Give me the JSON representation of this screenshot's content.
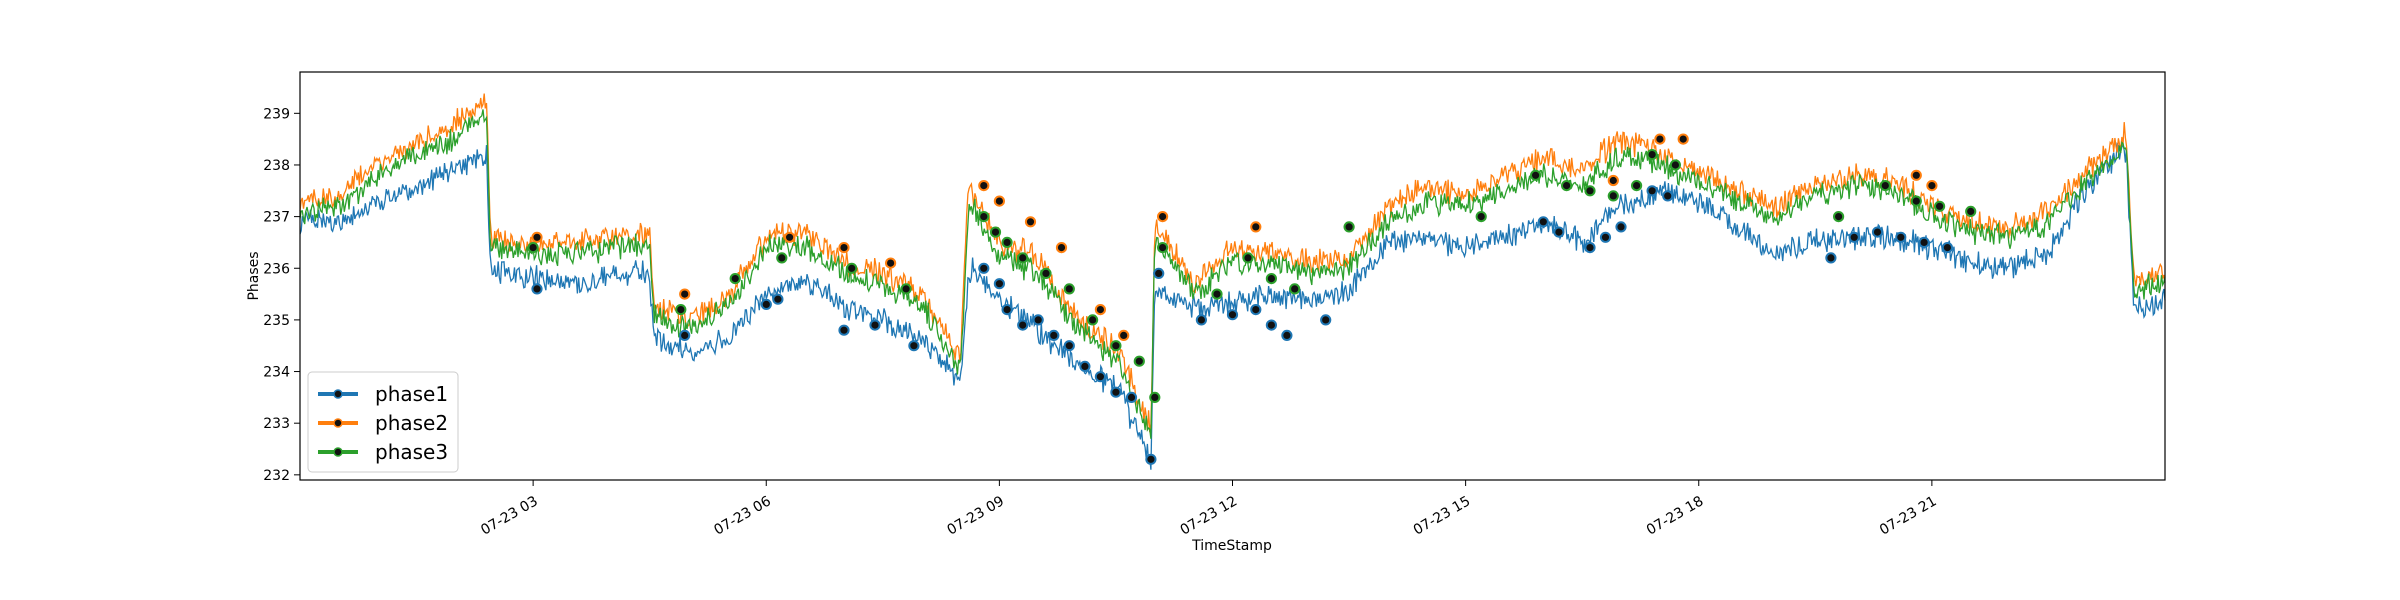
{
  "chart_data": {
    "type": "line",
    "title": "",
    "xlabel": "TimeStamp",
    "ylabel": "Phases",
    "x_range": [
      "07-23 00:00",
      "07-23 23:59"
    ],
    "ylim": [
      231.9,
      239.8
    ],
    "y_ticks": [
      232,
      233,
      234,
      235,
      236,
      237,
      238,
      239
    ],
    "x_ticks": [
      {
        "label": "07-23 03",
        "hour": 3
      },
      {
        "label": "07-23 06",
        "hour": 6
      },
      {
        "label": "07-23 09",
        "hour": 9
      },
      {
        "label": "07-23 12",
        "hour": 12
      },
      {
        "label": "07-23 15",
        "hour": 15
      },
      {
        "label": "07-23 18",
        "hour": 18
      },
      {
        "label": "07-23 21",
        "hour": 21
      }
    ],
    "legend": {
      "placement": "bottom-left"
    },
    "grid": false,
    "x_hours": [
      0,
      0.5,
      1,
      1.5,
      2,
      2.4,
      2.45,
      3,
      3.5,
      4,
      4.5,
      4.55,
      5,
      5.5,
      6,
      6.5,
      7,
      7.5,
      8,
      8.5,
      8.6,
      8.65,
      9,
      9.5,
      10,
      10.5,
      10.95,
      11,
      11.5,
      12,
      12.5,
      13,
      13.5,
      14,
      14.5,
      15,
      15.5,
      16,
      16.5,
      17,
      17.5,
      18,
      18.5,
      19,
      19.5,
      20,
      20.5,
      21,
      21.5,
      22,
      22.5,
      23,
      23.5,
      23.6,
      24
    ],
    "series": [
      {
        "name": "phase1",
        "color": "#1f77b4",
        "values": [
          236.9,
          236.9,
          237.3,
          237.6,
          237.9,
          238.2,
          236.0,
          235.8,
          235.7,
          235.9,
          235.9,
          234.6,
          234.4,
          234.6,
          235.5,
          235.8,
          235.2,
          235.0,
          234.6,
          233.8,
          235.8,
          236.0,
          235.4,
          234.8,
          234.1,
          233.7,
          232.3,
          235.6,
          235.2,
          235.3,
          235.5,
          235.4,
          235.6,
          236.5,
          236.6,
          236.4,
          236.6,
          236.9,
          236.5,
          237.2,
          237.5,
          237.3,
          236.8,
          236.3,
          236.5,
          236.6,
          236.6,
          236.4,
          236.1,
          236.0,
          236.3,
          237.6,
          238.3,
          235.2,
          235.4
        ]
      },
      {
        "name": "phase2",
        "color": "#ff7f0e",
        "values": [
          237.3,
          237.4,
          238.0,
          238.4,
          238.8,
          239.3,
          236.6,
          236.5,
          236.5,
          236.6,
          236.7,
          235.3,
          235.0,
          235.4,
          236.6,
          236.7,
          236.1,
          235.9,
          235.5,
          234.3,
          237.5,
          237.5,
          236.5,
          236.2,
          235.0,
          234.5,
          232.9,
          236.9,
          235.7,
          236.4,
          236.3,
          236.1,
          236.2,
          237.2,
          237.6,
          237.4,
          237.8,
          238.1,
          237.9,
          238.5,
          238.2,
          237.9,
          237.5,
          237.2,
          237.6,
          237.8,
          237.7,
          237.2,
          236.9,
          236.8,
          237.1,
          237.9,
          238.6,
          235.7,
          236.0
        ]
      },
      {
        "name": "phase3",
        "color": "#2ca02c",
        "values": [
          237.1,
          237.2,
          237.8,
          238.2,
          238.5,
          239.1,
          236.4,
          236.3,
          236.3,
          236.4,
          236.5,
          235.1,
          234.8,
          235.2,
          236.4,
          236.4,
          235.9,
          235.7,
          235.3,
          234.0,
          237.1,
          237.2,
          236.2,
          235.9,
          234.8,
          234.3,
          232.7,
          236.6,
          235.5,
          236.1,
          236.1,
          235.9,
          236.0,
          236.9,
          237.3,
          237.2,
          237.5,
          237.8,
          237.6,
          238.2,
          238.0,
          237.7,
          237.3,
          237.0,
          237.4,
          237.6,
          237.5,
          237.0,
          236.7,
          236.6,
          236.9,
          237.7,
          238.4,
          235.5,
          235.8
        ]
      }
    ],
    "markers": [
      {
        "series": "phase1",
        "points": [
          [
            3.05,
            235.6
          ],
          [
            4.95,
            234.7
          ],
          [
            6.0,
            235.3
          ],
          [
            6.15,
            235.4
          ],
          [
            7.0,
            234.8
          ],
          [
            7.4,
            234.9
          ],
          [
            7.9,
            234.5
          ],
          [
            8.8,
            236.0
          ],
          [
            9.0,
            235.7
          ],
          [
            9.1,
            235.2
          ],
          [
            9.3,
            234.9
          ],
          [
            9.5,
            235.0
          ],
          [
            9.7,
            234.7
          ],
          [
            9.9,
            234.5
          ],
          [
            10.1,
            234.1
          ],
          [
            10.3,
            233.9
          ],
          [
            10.5,
            233.6
          ],
          [
            10.7,
            233.5
          ],
          [
            10.95,
            232.3
          ],
          [
            11.05,
            235.9
          ],
          [
            11.6,
            235.0
          ],
          [
            12.0,
            235.1
          ],
          [
            12.3,
            235.2
          ],
          [
            12.5,
            234.9
          ],
          [
            12.7,
            234.7
          ],
          [
            13.2,
            235.0
          ],
          [
            16.0,
            236.9
          ],
          [
            16.2,
            236.7
          ],
          [
            16.6,
            236.4
          ],
          [
            16.8,
            236.6
          ],
          [
            17.0,
            236.8
          ],
          [
            17.4,
            237.5
          ],
          [
            17.6,
            237.4
          ],
          [
            19.7,
            236.2
          ],
          [
            20.0,
            236.6
          ],
          [
            20.3,
            236.7
          ],
          [
            20.6,
            236.6
          ],
          [
            20.9,
            236.5
          ],
          [
            21.2,
            236.4
          ]
        ]
      },
      {
        "series": "phase2",
        "points": [
          [
            3.05,
            236.6
          ],
          [
            4.95,
            235.5
          ],
          [
            6.3,
            236.6
          ],
          [
            7.0,
            236.4
          ],
          [
            7.6,
            236.1
          ],
          [
            8.8,
            237.6
          ],
          [
            9.0,
            237.3
          ],
          [
            9.4,
            236.9
          ],
          [
            9.8,
            236.4
          ],
          [
            10.3,
            235.2
          ],
          [
            10.6,
            234.7
          ],
          [
            11.1,
            237.0
          ],
          [
            12.3,
            236.8
          ],
          [
            16.9,
            237.7
          ],
          [
            17.5,
            238.5
          ],
          [
            17.8,
            238.5
          ],
          [
            20.8,
            237.8
          ],
          [
            21.0,
            237.6
          ]
        ]
      },
      {
        "series": "phase3",
        "points": [
          [
            3.0,
            236.4
          ],
          [
            4.9,
            235.2
          ],
          [
            5.6,
            235.8
          ],
          [
            6.2,
            236.2
          ],
          [
            7.1,
            236.0
          ],
          [
            7.8,
            235.6
          ],
          [
            8.8,
            237.0
          ],
          [
            8.95,
            236.7
          ],
          [
            9.1,
            236.5
          ],
          [
            9.3,
            236.2
          ],
          [
            9.6,
            235.9
          ],
          [
            9.9,
            235.6
          ],
          [
            10.2,
            235.0
          ],
          [
            10.5,
            234.5
          ],
          [
            10.8,
            234.2
          ],
          [
            11.0,
            233.5
          ],
          [
            11.1,
            236.4
          ],
          [
            11.8,
            235.5
          ],
          [
            12.2,
            236.2
          ],
          [
            12.5,
            235.8
          ],
          [
            12.8,
            235.6
          ],
          [
            13.5,
            236.8
          ],
          [
            15.2,
            237.0
          ],
          [
            15.9,
            237.8
          ],
          [
            16.3,
            237.6
          ],
          [
            16.6,
            237.5
          ],
          [
            16.9,
            237.4
          ],
          [
            17.2,
            237.6
          ],
          [
            17.4,
            238.2
          ],
          [
            17.7,
            238.0
          ],
          [
            19.8,
            237.0
          ],
          [
            20.4,
            237.6
          ],
          [
            20.8,
            237.3
          ],
          [
            21.1,
            237.2
          ],
          [
            21.5,
            237.1
          ]
        ]
      }
    ]
  }
}
